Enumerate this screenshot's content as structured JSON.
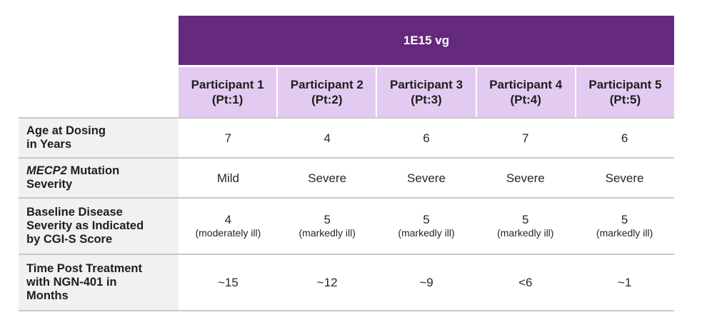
{
  "dose": "1E15 vg",
  "participants": [
    {
      "line1": "Participant 1",
      "line2": "(Pt:1)"
    },
    {
      "line1": "Participant 2",
      "line2": "(Pt:2)"
    },
    {
      "line1": "Participant 3",
      "line2": "(Pt:3)"
    },
    {
      "line1": "Participant 4",
      "line2": "(Pt:4)"
    },
    {
      "line1": "Participant 5",
      "line2": "(Pt:5)"
    }
  ],
  "rows": {
    "age": {
      "label_line1": "Age at Dosing",
      "label_line2": "in Years",
      "values": [
        "7",
        "4",
        "6",
        "7",
        "6"
      ]
    },
    "mutation": {
      "label_gene": "MECP2",
      "label_rest": " Mutation",
      "label_line2": "Severity",
      "values": [
        "Mild",
        "Severe",
        "Severe",
        "Severe",
        "Severe"
      ]
    },
    "baseline": {
      "label_line1": "Baseline Disease",
      "label_line2": "Severity as Indicated",
      "label_line3": "by CGI-S Score",
      "values": [
        {
          "score": "4",
          "desc": "(moderately ill)"
        },
        {
          "score": "5",
          "desc": "(markedly ill)"
        },
        {
          "score": "5",
          "desc": "(markedly ill)"
        },
        {
          "score": "5",
          "desc": "(markedly ill)"
        },
        {
          "score": "5",
          "desc": "(markedly ill)"
        }
      ]
    },
    "time": {
      "label_line1": "Time Post Treatment",
      "label_line2": "with NGN-401 in",
      "label_line3": "Months",
      "values": [
        "~15",
        "~12",
        "~9",
        "<6",
        "~1"
      ]
    }
  },
  "colors": {
    "dose_band": "#65297d",
    "participant_header": "#e3caf0",
    "row_label_bg": "#f1f1f1",
    "divider": "#c9c9c9"
  }
}
